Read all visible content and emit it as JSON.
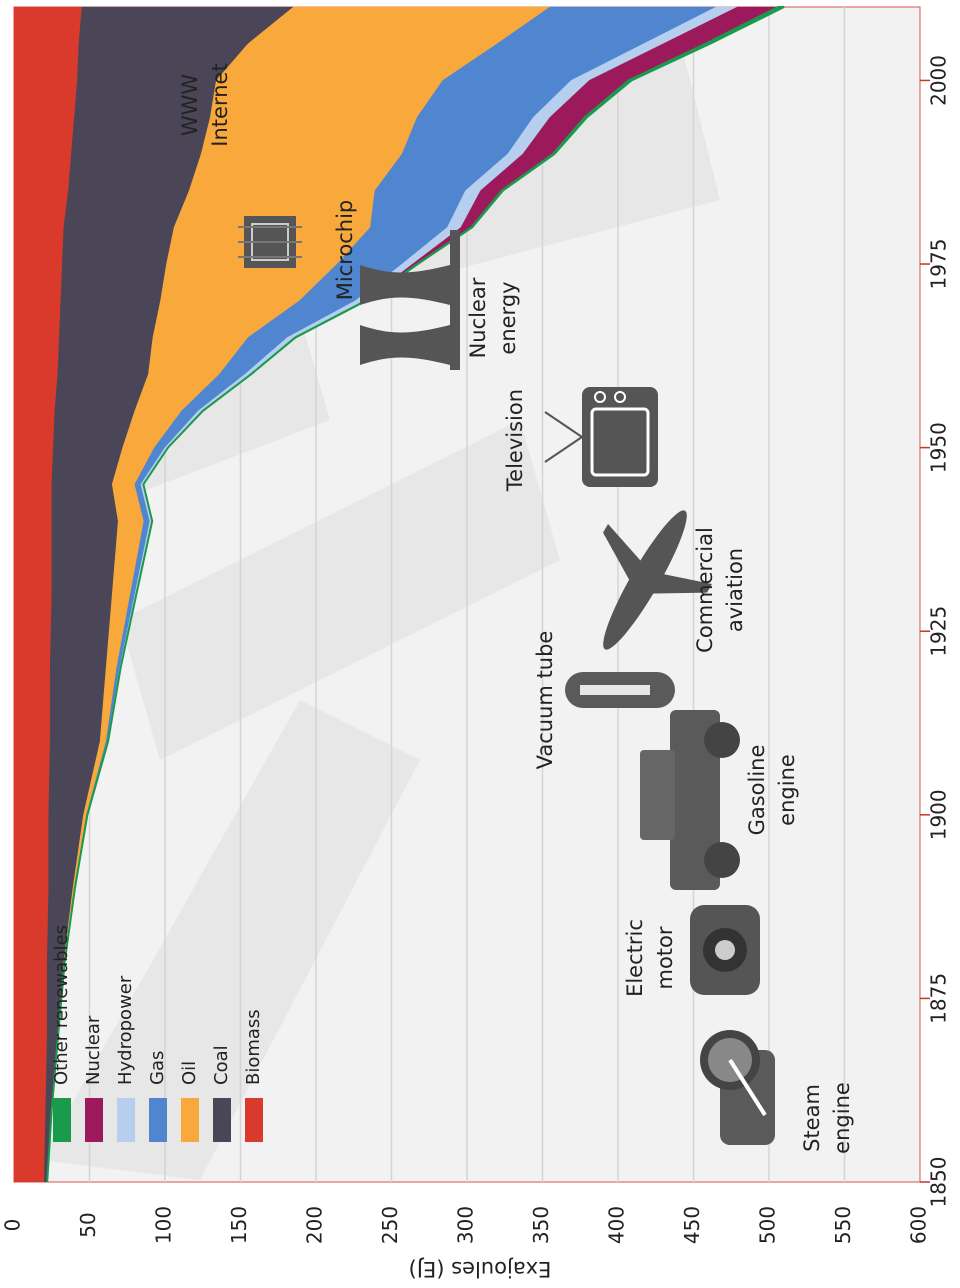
{
  "chart_data": {
    "type": "area",
    "stacked": true,
    "ylabel": "Exajoules (EJ)",
    "xlim": [
      1850,
      2010
    ],
    "ylim": [
      0,
      600
    ],
    "x_ticks": [
      1850,
      1875,
      1900,
      1925,
      1950,
      1975,
      2000
    ],
    "y_ticks": [
      0,
      50,
      100,
      150,
      200,
      250,
      300,
      350,
      400,
      450,
      500,
      550,
      600
    ],
    "grid": true,
    "legend_position": "top-left",
    "x": [
      1850,
      1860,
      1870,
      1880,
      1890,
      1900,
      1910,
      1920,
      1930,
      1940,
      1945,
      1950,
      1955,
      1960,
      1965,
      1970,
      1975,
      1980,
      1985,
      1990,
      1995,
      2000,
      2005,
      2010
    ],
    "series": [
      {
        "name": "Biomass",
        "color": "#d93a2b",
        "values": [
          20,
          21,
          22,
          22,
          23,
          23,
          24,
          24,
          25,
          25,
          25,
          26,
          27,
          29,
          30,
          31,
          32,
          33,
          36,
          38,
          40,
          42,
          43,
          45
        ]
      },
      {
        "name": "Coal",
        "color": "#4a4658",
        "values": [
          2,
          4,
          7,
          11,
          16,
          23,
          33,
          37,
          40,
          44,
          40,
          46,
          53,
          60,
          62,
          66,
          69,
          73,
          80,
          86,
          90,
          92,
          112,
          140
        ]
      },
      {
        "name": "Oil",
        "color": "#f9a93b",
        "values": [
          0,
          0,
          0.2,
          0.5,
          1,
          2,
          4,
          7,
          12,
          17,
          15,
          21,
          31,
          47,
          63,
          92,
          113,
          130,
          123,
          133,
          137,
          150,
          165,
          170
        ]
      },
      {
        "name": "Gas",
        "color": "#4f86cf",
        "values": [
          0,
          0,
          0,
          0.1,
          0.3,
          0.5,
          1,
          2,
          3,
          4,
          4,
          7,
          11,
          17,
          26,
          37,
          43,
          51,
          60,
          70,
          77,
          85,
          97,
          110
        ]
      },
      {
        "name": "Hydropower",
        "color": "#b7cfee",
        "values": [
          0,
          0,
          0,
          0,
          0,
          0.1,
          0.3,
          0.6,
          1,
          1.5,
          1.7,
          2,
          3,
          4,
          5,
          6,
          7,
          9,
          10,
          10,
          11,
          12,
          13,
          14
        ]
      },
      {
        "name": "Nuclear",
        "color": "#9c1a5b",
        "values": [
          0,
          0,
          0,
          0,
          0,
          0,
          0,
          0,
          0,
          0,
          0,
          0,
          0,
          0,
          0.2,
          0.8,
          3,
          7,
          14,
          20,
          23,
          26,
          28,
          27
        ]
      },
      {
        "name": "Other renewables",
        "color": "#1a9a4c",
        "values": [
          0,
          0,
          0,
          0,
          0,
          0,
          0,
          0,
          0,
          0,
          0,
          0,
          0,
          0.1,
          0.2,
          0.3,
          0.4,
          0.5,
          0.8,
          1,
          1.5,
          2,
          3,
          4
        ]
      }
    ],
    "annotations": [
      {
        "text": "Steam engine",
        "icon": "steam-engine-icon",
        "x": 1862
      },
      {
        "text": "Electric motor",
        "icon": "electric-motor-icon",
        "x": 1880
      },
      {
        "text": "Gasoline engine",
        "icon": "car-icon",
        "x": 1900
      },
      {
        "text": "Vacuum tube",
        "icon": "vacuum-tube-icon",
        "x": 1912
      },
      {
        "text": "Commercial aviation",
        "icon": "airplane-icon",
        "x": 1935
      },
      {
        "text": "Television",
        "icon": "television-icon",
        "x": 1948
      },
      {
        "text": "Nuclear energy",
        "icon": "nuclear-plant-icon",
        "x": 1968
      },
      {
        "text": "Microchip",
        "icon": "microchip-icon",
        "x": 1978
      },
      {
        "text": "WWW Internet",
        "icon": "",
        "x": 1995
      }
    ]
  }
}
